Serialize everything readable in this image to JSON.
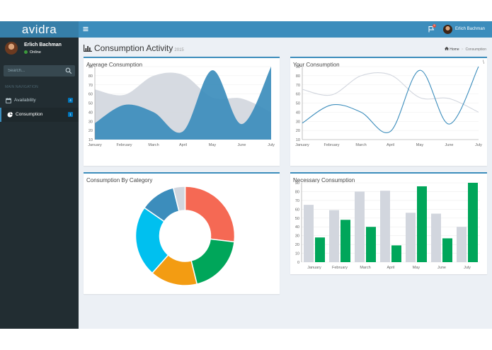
{
  "brand": "avidra",
  "sidebar": {
    "user_name": "Erlich Bachman",
    "user_status": "Online",
    "search_placeholder": "Search...",
    "nav_header": "MAIN NAVIGATION",
    "items": [
      {
        "label": "Availability",
        "badge": "4"
      },
      {
        "label": "Consumption",
        "badge": "1"
      }
    ]
  },
  "topbar": {
    "user_name": "Erlich Bachman",
    "flag_count": "9"
  },
  "page": {
    "title": "Consumption Activity",
    "subtitle": "2015",
    "breadcrumb_home": "Home",
    "breadcrumb_current": "Consumption"
  },
  "boxes": {
    "average": "Average Consumption",
    "yours": "Your Consumption",
    "yours_tool": "\\",
    "category": "Consumption By Category",
    "necessary": "Necessary Consumption"
  },
  "colors": {
    "accent": "#3c8dbc",
    "series_gray": "#d2d6de",
    "series_blue": "#3c8dbc",
    "bar_green": "#00a65a"
  },
  "chart_data": [
    {
      "type": "area",
      "title": "Average Consumption",
      "categories": [
        "January",
        "February",
        "March",
        "April",
        "May",
        "June",
        "July"
      ],
      "ylim": [
        10,
        90
      ],
      "yticks": [
        10,
        20,
        30,
        40,
        50,
        60,
        70,
        80,
        90
      ],
      "series": [
        {
          "values": [
            65,
            59,
            80,
            81,
            56,
            55,
            40
          ],
          "color": "#d2d6de"
        },
        {
          "values": [
            28,
            48,
            40,
            19,
            86,
            27,
            90
          ],
          "color": "#3c8dbc"
        }
      ]
    },
    {
      "type": "line",
      "title": "Your Consumption",
      "categories": [
        "January",
        "February",
        "March",
        "April",
        "May",
        "June",
        "July"
      ],
      "ylim": [
        10,
        90
      ],
      "yticks": [
        10,
        20,
        30,
        40,
        50,
        60,
        70,
        80,
        90
      ],
      "series": [
        {
          "values": [
            65,
            59,
            80,
            81,
            56,
            55,
            40
          ],
          "color": "#d2d6de"
        },
        {
          "values": [
            28,
            48,
            40,
            19,
            86,
            27,
            90
          ],
          "color": "#3c8dbc"
        }
      ]
    },
    {
      "type": "pie",
      "title": "Consumption By Category",
      "values": [
        700,
        500,
        400,
        600,
        300,
        100
      ],
      "colors": [
        "#f56954",
        "#00a65a",
        "#f39c12",
        "#00c0ef",
        "#3c8dbc",
        "#d2d6de"
      ]
    },
    {
      "type": "bar",
      "title": "Necessary Consumption",
      "categories": [
        "January",
        "February",
        "March",
        "April",
        "May",
        "June",
        "July"
      ],
      "ylim": [
        0,
        90
      ],
      "yticks": [
        0,
        10,
        20,
        30,
        40,
        50,
        60,
        70,
        80,
        90
      ],
      "series": [
        {
          "values": [
            65,
            59,
            80,
            81,
            56,
            55,
            40
          ],
          "color": "#d2d6de"
        },
        {
          "values": [
            28,
            48,
            40,
            19,
            86,
            27,
            90
          ],
          "color": "#00a65a"
        }
      ]
    }
  ]
}
